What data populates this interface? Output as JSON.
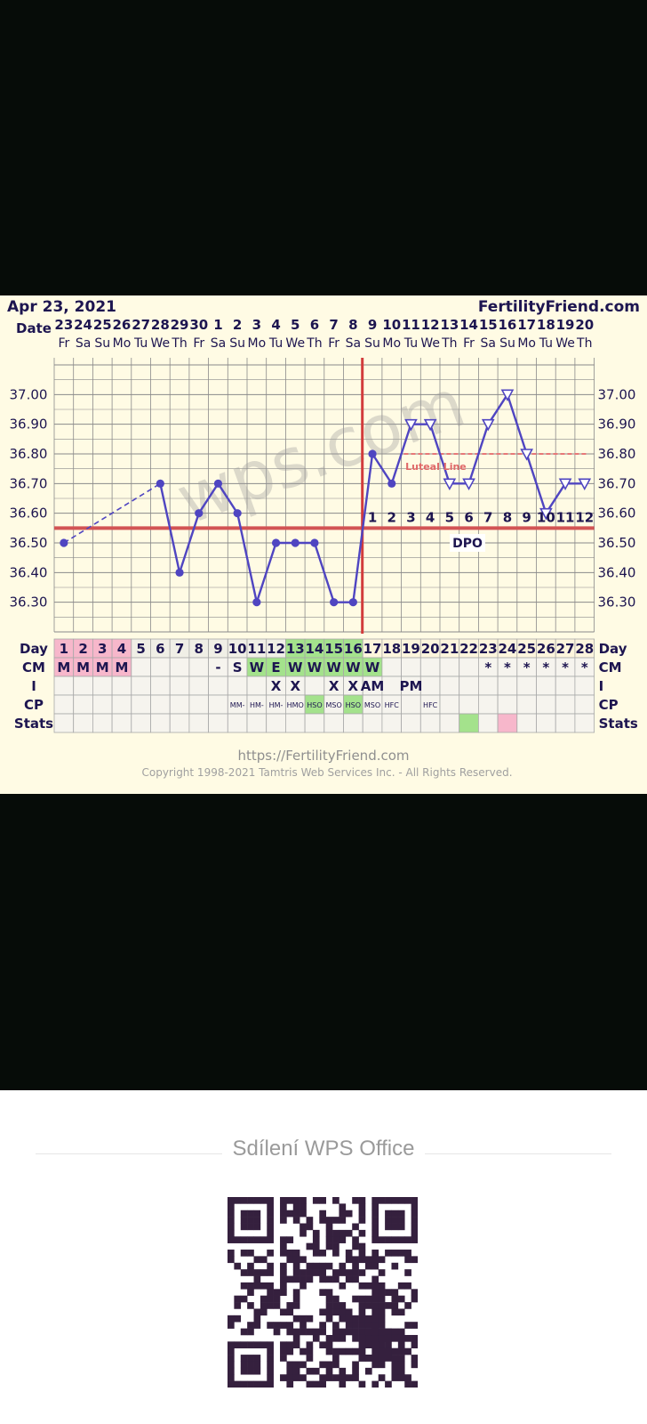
{
  "header": {
    "date": "Apr 23, 2021",
    "site": "FertilityFriend.com"
  },
  "watermark": "wps.com",
  "footer": {
    "url": "https://FertilityFriend.com",
    "copyright": "Copyright 1998-2021 Tamtris Web Services Inc. - All Rights Reserved."
  },
  "share": {
    "title": "Sdílení WPS Office",
    "qr_icon": "qr-code-icon"
  },
  "colors": {
    "background": "#fffbe4",
    "line": "#4f45c1",
    "coverline": "#d25454",
    "ovulation": "#d23c3c",
    "menses": "#f7b7cb",
    "fertile": "#a4e28c",
    "text": "#1d1550"
  },
  "chart_data": {
    "type": "line",
    "row_labels": [
      "Date",
      "Day",
      "CM",
      "I",
      "CP",
      "Stats"
    ],
    "dates": [
      "23",
      "24",
      "25",
      "26",
      "27",
      "28",
      "29",
      "30",
      "1",
      "2",
      "3",
      "4",
      "5",
      "6",
      "7",
      "8",
      "9",
      "10",
      "11",
      "12",
      "13",
      "14",
      "15",
      "16",
      "17",
      "18",
      "19",
      "20"
    ],
    "weekdays": [
      "Fr",
      "Sa",
      "Su",
      "Mo",
      "Tu",
      "We",
      "Th",
      "Fr",
      "Sa",
      "Su",
      "Mo",
      "Tu",
      "We",
      "Th",
      "Fr",
      "Sa",
      "Su",
      "Mo",
      "Tu",
      "We",
      "Th",
      "Fr",
      "Sa",
      "Su",
      "Mo",
      "Tu",
      "We",
      "Th"
    ],
    "days": [
      "1",
      "2",
      "3",
      "4",
      "5",
      "6",
      "7",
      "8",
      "9",
      "10",
      "11",
      "12",
      "13",
      "14",
      "15",
      "16",
      "17",
      "18",
      "19",
      "20",
      "21",
      "22",
      "23",
      "24",
      "25",
      "26",
      "27",
      "28"
    ],
    "y_ticks": [
      "37.00",
      "36.90",
      "36.80",
      "36.70",
      "36.60",
      "36.50",
      "36.40",
      "36.30"
    ],
    "ylim": [
      36.2,
      37.1
    ],
    "temps": [
      36.5,
      null,
      null,
      null,
      null,
      36.7,
      36.4,
      36.6,
      36.7,
      36.6,
      36.3,
      36.5,
      36.5,
      36.5,
      36.3,
      36.3,
      36.8,
      36.7,
      36.9,
      36.9,
      36.7,
      36.7,
      36.9,
      37.0,
      36.8,
      36.6,
      36.7,
      36.7
    ],
    "temp_markers": [
      "dot",
      null,
      null,
      null,
      null,
      "dot",
      "dot",
      "dot",
      "dot",
      "dot",
      "dot",
      "dot",
      "dot",
      "dot",
      "dot",
      "dot",
      "dot",
      "dot",
      "triangle",
      "triangle",
      "triangle",
      "triangle",
      "triangle",
      "triangle",
      "triangle",
      "triangle",
      "triangle",
      "triangle"
    ],
    "dashed_segment_days": [
      1,
      6
    ],
    "coverline": 36.55,
    "ovulation_day": 16,
    "luteal_line": {
      "label": "Luteal Line",
      "value": 36.8,
      "from_day": 19,
      "to_day": 28
    },
    "dpo": {
      "label": "DPO",
      "numbers": [
        "1",
        "2",
        "3",
        "4",
        "5",
        "6",
        "7",
        "8",
        "9",
        "10",
        "11",
        "12"
      ],
      "start_day": 17
    },
    "cm": [
      "M",
      "M",
      "M",
      "M",
      "",
      "",
      "",
      "",
      "-",
      "S",
      "W",
      "E",
      "W",
      "W",
      "W",
      "W",
      "W",
      "",
      "",
      "",
      "",
      "",
      "*",
      "*",
      "*",
      "*",
      "*",
      "*"
    ],
    "cm_types": [
      "menses",
      "menses",
      "menses",
      "menses",
      "",
      "",
      "",
      "",
      "",
      "",
      "fertile",
      "fertile",
      "fertile",
      "fertile",
      "fertile",
      "fertile",
      "fertile",
      "",
      "",
      "",
      "",
      "",
      "",
      "",
      "",
      "",
      "",
      ""
    ],
    "intercourse": [
      "",
      "",
      "",
      "",
      "",
      "",
      "",
      "",
      "",
      "",
      "",
      "X",
      "X",
      "",
      "X",
      "X",
      "AM",
      "",
      "PM",
      "",
      "",
      "",
      "",
      "",
      "",
      "",
      "",
      ""
    ],
    "cp": [
      "",
      "",
      "",
      "",
      "",
      "",
      "",
      "",
      "",
      "MM-",
      "HM-",
      "HM-",
      "HMO",
      "HSO",
      "MSO",
      "HSO",
      "MSO",
      "HFC",
      "",
      "HFC",
      "",
      "",
      "",
      "",
      "",
      "",
      "",
      ""
    ],
    "cp_types": [
      "",
      "",
      "",
      "",
      "",
      "",
      "",
      "",
      "",
      "",
      "",
      "",
      "",
      "fertile",
      "",
      "fertile",
      "",
      "",
      "",
      "",
      "",
      "",
      "",
      "",
      "",
      "",
      "",
      ""
    ],
    "stats": [
      "",
      "",
      "",
      "",
      "",
      "",
      "",
      "",
      "",
      "",
      "",
      "",
      "",
      "",
      "",
      "",
      "",
      "",
      "",
      "",
      "",
      "green",
      "",
      "pink",
      "",
      "",
      "",
      ""
    ]
  }
}
